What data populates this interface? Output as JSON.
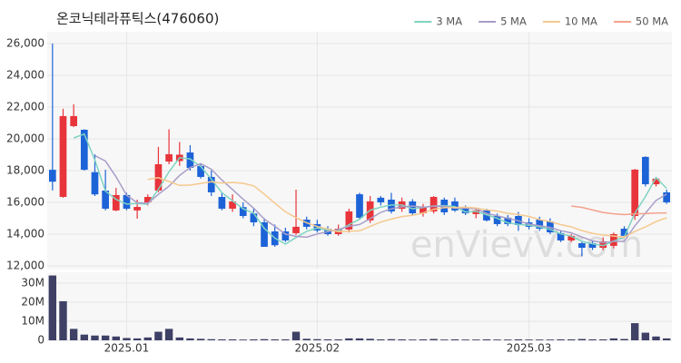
{
  "chart_data": {
    "type": "candlestick",
    "title": "온코닉테라퓨틱스(476060)",
    "watermark": "enVievV.com",
    "categories": [
      null,
      null,
      null,
      null,
      null,
      null,
      null,
      "2025.01",
      null,
      null,
      null,
      null,
      null,
      null,
      null,
      null,
      null,
      null,
      null,
      null,
      null,
      null,
      null,
      null,
      null,
      "2025.02",
      null,
      null,
      null,
      null,
      null,
      null,
      null,
      null,
      null,
      null,
      null,
      null,
      null,
      null,
      null,
      null,
      null,
      null,
      null,
      "2025.03",
      null,
      null,
      null,
      null,
      null,
      null,
      null,
      null,
      null,
      null,
      null,
      null,
      null
    ],
    "up_color": "#e8343b",
    "down_color": "#1d63d8",
    "open": [
      18050,
      16343,
      20800,
      20570,
      17900,
      16740,
      15490,
      16460,
      15490,
      16000,
      16740,
      18570,
      18600,
      19140,
      18280,
      17600,
      16340,
      15600,
      15700,
      15300,
      14740,
      14170,
      14170,
      14060,
      14910,
      14630,
      14340,
      14000,
      14290,
      16510,
      14860,
      16290,
      16170,
      15600,
      16060,
      15310,
      15430,
      16170,
      16060,
      15600,
      15260,
      15490,
      15140,
      15030,
      15140,
      14740,
      14910,
      14800,
      14060,
      13600,
      13430,
      13430,
      13140,
      13260,
      14340,
      15140,
      18860,
      17140,
      16630
    ],
    "high": [
      26000,
      21890,
      22170,
      20600,
      19030,
      18050,
      16910,
      16600,
      16170,
      16500,
      19490,
      20600,
      19800,
      19600,
      18400,
      18000,
      16600,
      16500,
      16000,
      15600,
      15000,
      14600,
      14400,
      16800,
      15100,
      14900,
      14500,
      14600,
      15600,
      16600,
      16400,
      16400,
      16600,
      16300,
      16200,
      15900,
      16400,
      16300,
      16300,
      15800,
      15600,
      15600,
      15300,
      15200,
      15400,
      15000,
      15100,
      15000,
      14200,
      14000,
      13500,
      13600,
      13800,
      14100,
      14500,
      18100,
      18900,
      17600,
      16800
    ],
    "low": [
      16750,
      16290,
      20740,
      18000,
      16400,
      15490,
      15450,
      15500,
      14970,
      15800,
      16630,
      18400,
      18300,
      18000,
      17500,
      16400,
      15500,
      15400,
      15000,
      14500,
      13200,
      13200,
      13500,
      13950,
      14300,
      14100,
      13900,
      13900,
      14100,
      14900,
      14700,
      15800,
      15300,
      15400,
      15200,
      15100,
      15300,
      15200,
      15400,
      15200,
      15000,
      14800,
      14500,
      14500,
      14200,
      14300,
      14200,
      14000,
      13500,
      13500,
      12600,
      13000,
      13000,
      13100,
      13800,
      14900,
      17000,
      17000,
      15900
    ],
    "close": [
      17300,
      21430,
      21430,
      18050,
      16500,
      15600,
      16460,
      15600,
      15710,
      16340,
      18400,
      19030,
      19000,
      18170,
      17600,
      16630,
      15600,
      16060,
      15140,
      14740,
      13200,
      13300,
      13600,
      14460,
      14460,
      14230,
      14000,
      14340,
      15430,
      15030,
      16060,
      16000,
      15430,
      16060,
      15310,
      15660,
      16340,
      15370,
      15490,
      15310,
      15490,
      14860,
      14630,
      14630,
      14570,
      14460,
      14340,
      14110,
      13600,
      13890,
      13140,
      13140,
      13540,
      14000,
      13890,
      18060,
      17140,
      17490,
      16000
    ],
    "series": [
      {
        "name": "3 MA",
        "color": "#7fd4c1",
        "values": [
          null,
          null,
          20053,
          20303,
          18660,
          16717,
          16187,
          15887,
          15923,
          15883,
          16817,
          17923,
          18810,
          18733,
          18257,
          17467,
          16610,
          16097,
          15600,
          15313,
          14360,
          13747,
          13367,
          13787,
          14173,
          14383,
          14230,
          14190,
          14590,
          14933,
          15507,
          15697,
          15830,
          15830,
          15600,
          15677,
          15770,
          15790,
          15733,
          15390,
          15430,
          15220,
          14993,
          14707,
          14610,
          14553,
          14457,
          14303,
          14017,
          13867,
          13543,
          13390,
          13273,
          13560,
          13810,
          15317,
          16363,
          17563,
          16877
        ]
      },
      {
        "name": "5 MA",
        "color": "#a99dc9",
        "values": [
          null,
          null,
          null,
          null,
          18942,
          18602,
          17608,
          16442,
          15974,
          15942,
          16502,
          17016,
          17696,
          18188,
          18440,
          18086,
          17400,
          16812,
          16206,
          15634,
          14948,
          14488,
          13996,
          13860,
          13804,
          14010,
          14150,
          14298,
          14492,
          14606,
          14972,
          15372,
          15590,
          15716,
          15772,
          15692,
          15760,
          15748,
          15634,
          15634,
          15600,
          15304,
          15156,
          14984,
          14836,
          14630,
          14526,
          14422,
          14216,
          14080,
          13816,
          13576,
          13462,
          13542,
          13542,
          14526,
          15326,
          16116,
          16516
        ]
      },
      {
        "name": "10 MA",
        "color": "#f6c98f",
        "values": [
          null,
          null,
          null,
          null,
          null,
          null,
          null,
          null,
          null,
          17442,
          17552,
          17312,
          17069,
          17081,
          17191,
          17294,
          17208,
          17254,
          17197,
          17037,
          16517,
          15944,
          15404,
          15033,
          14719,
          14479,
          14319,
          14147,
          14176,
          14205,
          14491,
          14761,
          14944,
          15104,
          15189,
          15332,
          15566,
          15669,
          15675,
          15703,
          15646,
          15532,
          15452,
          15309,
          15235,
          15115,
          14915,
          14789,
          14600,
          14458,
          14223,
          14051,
          13942,
          13879,
          13811,
          14171,
          14451,
          14789,
          15029
        ]
      },
      {
        "name": "50 MA",
        "color": "#f4a18d",
        "values": [
          null,
          null,
          null,
          null,
          null,
          null,
          null,
          null,
          null,
          null,
          null,
          null,
          null,
          null,
          null,
          null,
          null,
          null,
          null,
          null,
          null,
          null,
          null,
          null,
          null,
          null,
          null,
          null,
          null,
          null,
          null,
          null,
          null,
          null,
          null,
          null,
          null,
          null,
          null,
          null,
          null,
          null,
          null,
          null,
          null,
          null,
          null,
          null,
          null,
          15769,
          15686,
          15520,
          15362,
          15281,
          15229,
          15278,
          15292,
          15330,
          15335
        ]
      }
    ],
    "ylim": [
      11770,
      26740
    ],
    "yticks": [
      {
        "value": 12000,
        "label": "12,000"
      },
      {
        "value": 14000,
        "label": "14,000"
      },
      {
        "value": 16000,
        "label": "16,000"
      },
      {
        "value": 18000,
        "label": "18,000"
      },
      {
        "value": 20000,
        "label": "20,000"
      },
      {
        "value": 22000,
        "label": "22,000"
      },
      {
        "value": 24000,
        "label": "24,000"
      },
      {
        "value": 26000,
        "label": "26,000"
      }
    ],
    "grid": true,
    "legend": "top-right",
    "volume": {
      "color": "#3e4066",
      "ylim": [
        0,
        35700000
      ],
      "yticks": [
        0,
        {
          "value": 10000000,
          "label": "10M"
        },
        {
          "value": 20000000,
          "label": "20M"
        },
        {
          "value": 30000000,
          "label": "30M"
        }
      ],
      "values": [
        34000000,
        20500000,
        6000000,
        3000000,
        2500000,
        2500000,
        2000000,
        1200000,
        1000000,
        1500000,
        4500000,
        6000000,
        1500000,
        1000000,
        800000,
        600000,
        500000,
        500000,
        400000,
        500000,
        600000,
        500000,
        500000,
        4500000,
        800000,
        600000,
        500000,
        500000,
        1000000,
        1000000,
        800000,
        500000,
        600000,
        500000,
        400000,
        500000,
        700000,
        400000,
        500000,
        400000,
        400000,
        500000,
        400000,
        400000,
        500000,
        400000,
        400000,
        400000,
        500000,
        500000,
        700000,
        500000,
        500000,
        1000000,
        700000,
        9000000,
        4000000,
        2000000,
        1000000
      ]
    }
  }
}
